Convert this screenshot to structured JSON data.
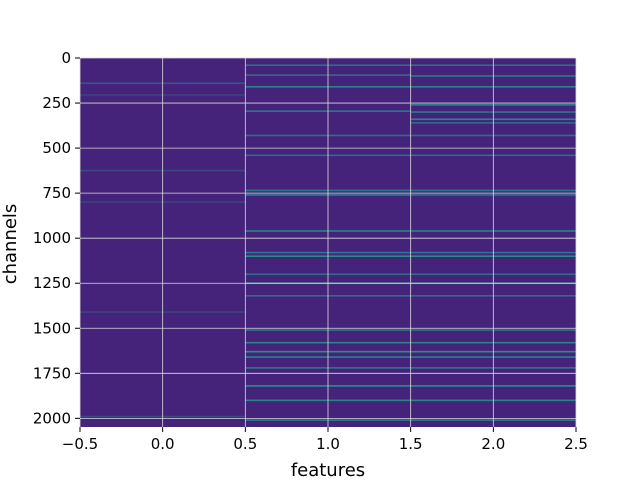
{
  "chart_data": {
    "type": "heatmap",
    "xlabel": "features",
    "ylabel": "channels",
    "xlim": [
      -0.5,
      2.5
    ],
    "ylim": [
      2048,
      0
    ],
    "y_inverted": true,
    "grid": true,
    "grid_color": "#d9d9d9",
    "colormap": "viridis",
    "background_color": "#45256f",
    "x_ticks": [
      -0.5,
      0.0,
      0.5,
      1.0,
      1.5,
      2.0,
      2.5
    ],
    "x_tick_labels": [
      "−0.5",
      "0.0",
      "0.5",
      "1.0",
      "1.5",
      "2.0",
      "2.5"
    ],
    "y_ticks": [
      0,
      250,
      500,
      750,
      1000,
      1250,
      1500,
      1750,
      2000
    ],
    "y_tick_labels": [
      "0",
      "250",
      "500",
      "750",
      "1000",
      "1250",
      "1500",
      "1750",
      "2000"
    ],
    "columns": [
      {
        "feature": 0,
        "base_color": "#46237a",
        "bands": [
          {
            "channel": 140,
            "value": 0.25
          },
          {
            "channel": 205,
            "value": 0.2
          },
          {
            "channel": 625,
            "value": 0.22
          },
          {
            "channel": 800,
            "value": 0.2
          },
          {
            "channel": 1410,
            "value": 0.2
          },
          {
            "channel": 1990,
            "value": 0.22
          }
        ]
      },
      {
        "feature": 1,
        "base_color": "#46237a",
        "bands": [
          {
            "channel": 40,
            "value": 0.35
          },
          {
            "channel": 95,
            "value": 0.35
          },
          {
            "channel": 160,
            "value": 0.45
          },
          {
            "channel": 295,
            "value": 0.4
          },
          {
            "channel": 430,
            "value": 0.35
          },
          {
            "channel": 540,
            "value": 0.35
          },
          {
            "channel": 735,
            "value": 0.4
          },
          {
            "channel": 760,
            "value": 0.45
          },
          {
            "channel": 960,
            "value": 0.45
          },
          {
            "channel": 1080,
            "value": 0.4
          },
          {
            "channel": 1100,
            "value": 0.5
          },
          {
            "channel": 1200,
            "value": 0.35
          },
          {
            "channel": 1250,
            "value": 0.55
          },
          {
            "channel": 1320,
            "value": 0.35
          },
          {
            "channel": 1510,
            "value": 0.4
          },
          {
            "channel": 1580,
            "value": 0.45
          },
          {
            "channel": 1630,
            "value": 0.5
          },
          {
            "channel": 1660,
            "value": 0.45
          },
          {
            "channel": 1720,
            "value": 0.4
          },
          {
            "channel": 1820,
            "value": 0.5
          },
          {
            "channel": 1900,
            "value": 0.45
          },
          {
            "channel": 2010,
            "value": 0.4
          }
        ]
      },
      {
        "feature": 2,
        "base_color": "#46237a",
        "bands": [
          {
            "channel": 40,
            "value": 0.35
          },
          {
            "channel": 100,
            "value": 0.4
          },
          {
            "channel": 160,
            "value": 0.45
          },
          {
            "channel": 260,
            "value": 0.45
          },
          {
            "channel": 300,
            "value": 0.4
          },
          {
            "channel": 340,
            "value": 0.45
          },
          {
            "channel": 360,
            "value": 0.35
          },
          {
            "channel": 430,
            "value": 0.35
          },
          {
            "channel": 540,
            "value": 0.35
          },
          {
            "channel": 735,
            "value": 0.4
          },
          {
            "channel": 760,
            "value": 0.4
          },
          {
            "channel": 960,
            "value": 0.45
          },
          {
            "channel": 1080,
            "value": 0.4
          },
          {
            "channel": 1100,
            "value": 0.5
          },
          {
            "channel": 1200,
            "value": 0.35
          },
          {
            "channel": 1250,
            "value": 0.55
          },
          {
            "channel": 1320,
            "value": 0.35
          },
          {
            "channel": 1510,
            "value": 0.4
          },
          {
            "channel": 1580,
            "value": 0.45
          },
          {
            "channel": 1630,
            "value": 0.5
          },
          {
            "channel": 1660,
            "value": 0.45
          },
          {
            "channel": 1720,
            "value": 0.4
          },
          {
            "channel": 1820,
            "value": 0.5
          },
          {
            "channel": 1900,
            "value": 0.45
          },
          {
            "channel": 2010,
            "value": 0.4
          }
        ]
      }
    ]
  }
}
